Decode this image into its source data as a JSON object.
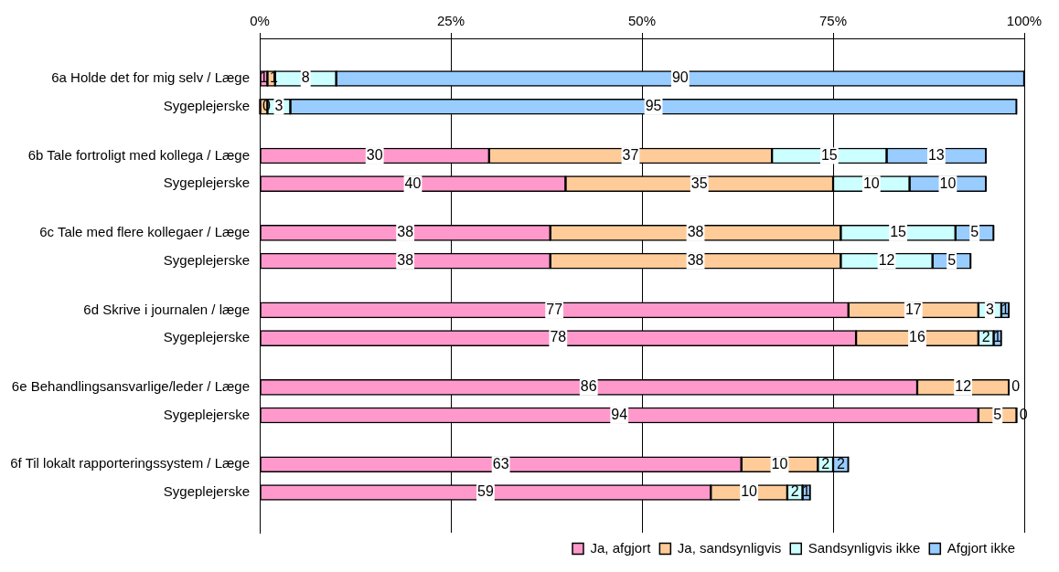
{
  "chart_data": {
    "type": "bar",
    "orientation": "horizontal",
    "stacked": true,
    "data_labels": true,
    "legend": "bottom",
    "grid": "x",
    "categories": [
      "6a Holde det for mig selv / Læge",
      "Sygeplejerske",
      "6b Tale fortroligt med kollega / Læge",
      "Sygeplejerske",
      "6c Tale med flere kollegaer / Læge",
      "Sygeplejerske",
      "6d Skrive i journalen / læge",
      "Sygeplejerske",
      "6e Behandlingsansvarlige/leder / Læge",
      "Sygeplejerske",
      "6f Til lokalt rapporteringssystem / Læge",
      "Sygeplejerske"
    ],
    "xlim": [
      0,
      100
    ],
    "xticks": [
      {
        "value": 0,
        "label": "0%"
      },
      {
        "value": 25,
        "label": "25%"
      },
      {
        "value": 50,
        "label": "50%"
      },
      {
        "value": 75,
        "label": "75%"
      },
      {
        "value": 100,
        "label": "100%"
      }
    ],
    "series": [
      {
        "name": "Ja, afgjort",
        "color": "#ff99cc",
        "values": [
          1,
          0,
          30,
          40,
          38,
          38,
          77,
          78,
          86,
          94,
          63,
          59
        ]
      },
      {
        "name": "Ja, sandsynligvis",
        "color": "#ffcc99",
        "values": [
          1,
          1,
          37,
          35,
          38,
          38,
          17,
          16,
          12,
          5,
          10,
          10
        ],
        "value_labels": [
          "1",
          null,
          "37",
          "35",
          "38",
          "38",
          "17",
          "16",
          "12",
          "5",
          "10",
          "10"
        ]
      },
      {
        "name": "Sandsynligvis ikke",
        "color": "#ccffff",
        "values": [
          8,
          3,
          15,
          10,
          15,
          12,
          3,
          2,
          0,
          0,
          2,
          2
        ],
        "value_labels": [
          "8",
          "3",
          "15",
          "10",
          "15",
          "12",
          "3",
          "2",
          null,
          "0",
          "2",
          "2"
        ]
      },
      {
        "name": "Afgjort ikke",
        "color": "#99ccff",
        "values": [
          90,
          95,
          13,
          10,
          5,
          5,
          1,
          1,
          0,
          null,
          2,
          1
        ]
      }
    ]
  }
}
